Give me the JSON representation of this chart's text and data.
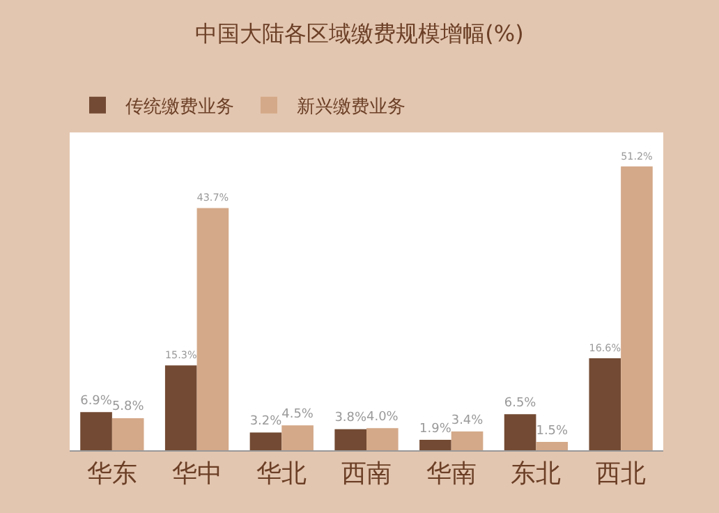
{
  "chart_data": {
    "type": "bar",
    "title": "中国大陆各区域缴费规模增幅(%)",
    "categories": [
      "华东",
      "华中",
      "华北",
      "西南",
      "华南",
      "东北",
      "西北"
    ],
    "series": [
      {
        "name": "传统缴费业务",
        "color": "#734a33",
        "values": [
          6.9,
          15.3,
          3.2,
          3.8,
          1.9,
          6.5,
          16.6
        ],
        "value_labels": [
          "6.9%",
          "15.3%",
          "3.2%",
          "3.8%",
          "1.9%",
          "6.5%",
          "16.6%"
        ]
      },
      {
        "name": "新兴缴费业务",
        "color": "#d4a989",
        "values": [
          5.8,
          43.7,
          4.5,
          4.0,
          3.4,
          1.5,
          51.2
        ],
        "value_labels": [
          "5.8%",
          "43.7%",
          "4.5%",
          "4.0%",
          "3.4%",
          "1.5%",
          "51.2%"
        ]
      }
    ],
    "legend": "top left"
  }
}
